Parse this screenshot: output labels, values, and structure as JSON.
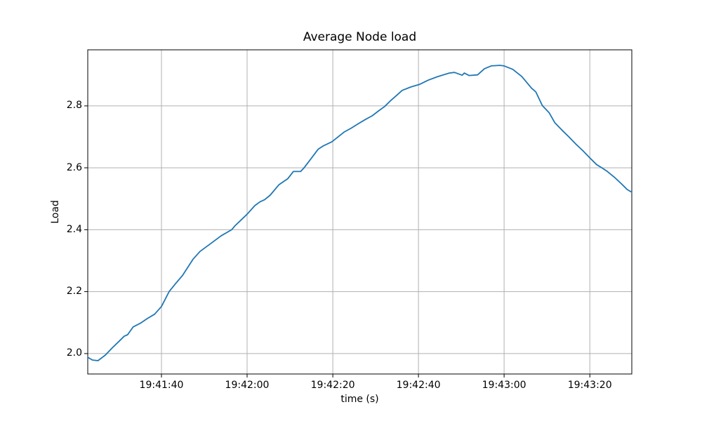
{
  "chart_data": {
    "type": "line",
    "title": "Average Node load",
    "xlabel": "time (s)",
    "ylabel": "Load",
    "grid": true,
    "legend": false,
    "background_color": "#ffffff",
    "grid_color": "#b0b0b0",
    "spine_color": "#000000",
    "x_axis": {
      "unit": "seconds after 19:41:00",
      "xlim_seconds": [
        22.8,
        149.8
      ],
      "ticks": [
        {
          "seconds": 40,
          "label": "19:41:40"
        },
        {
          "seconds": 60,
          "label": "19:42:00"
        },
        {
          "seconds": 80,
          "label": "19:42:20"
        },
        {
          "seconds": 100,
          "label": "19:42:40"
        },
        {
          "seconds": 120,
          "label": "19:43:00"
        },
        {
          "seconds": 140,
          "label": "19:43:20"
        }
      ]
    },
    "y_axis": {
      "ylim": [
        1.934,
        2.981
      ],
      "ticks": [
        {
          "value": 2.0,
          "label": "2.0"
        },
        {
          "value": 2.2,
          "label": "2.2"
        },
        {
          "value": 2.4,
          "label": "2.4"
        },
        {
          "value": 2.6,
          "label": "2.6"
        },
        {
          "value": 2.8,
          "label": "2.8"
        }
      ]
    },
    "series": [
      {
        "name": "average node load",
        "color": "#1f77b4",
        "line_width": 1.8,
        "x_seconds": [
          22.8,
          23.9,
          25.2,
          26.9,
          28.5,
          30.2,
          31.3,
          32.1,
          33.4,
          35.1,
          36.7,
          38.4,
          40.0,
          41.8,
          43.3,
          44.9,
          47.4,
          49.0,
          51.5,
          53.9,
          56.4,
          57.2,
          60.0,
          61.8,
          63.0,
          64.1,
          65.4,
          67.4,
          69.5,
          70.8,
          72.5,
          73.3,
          74.4,
          76.6,
          77.7,
          79.8,
          82.6,
          84.3,
          85.9,
          87.5,
          89.2,
          90.8,
          92.1,
          93.6,
          94.9,
          96.2,
          98.2,
          100.2,
          102.3,
          104.4,
          107.2,
          108.4,
          110.2,
          110.7,
          111.8,
          113.8,
          115.4,
          117.0,
          119.0,
          120.0,
          122.0,
          124.1,
          126.4,
          127.4,
          128.9,
          130.5,
          131.8,
          133.4,
          135.1,
          136.7,
          138.4,
          140.0,
          141.6,
          142.8,
          144.1,
          145.7,
          147.4,
          148.7,
          149.8
        ],
        "y": [
          1.988,
          1.979,
          1.977,
          1.995,
          2.018,
          2.041,
          2.056,
          2.061,
          2.086,
          2.098,
          2.113,
          2.127,
          2.152,
          2.2,
          2.226,
          2.252,
          2.305,
          2.33,
          2.355,
          2.38,
          2.4,
          2.413,
          2.45,
          2.478,
          2.49,
          2.497,
          2.512,
          2.545,
          2.565,
          2.588,
          2.588,
          2.6,
          2.62,
          2.66,
          2.67,
          2.684,
          2.715,
          2.728,
          2.742,
          2.755,
          2.768,
          2.785,
          2.798,
          2.818,
          2.834,
          2.85,
          2.861,
          2.869,
          2.883,
          2.894,
          2.906,
          2.908,
          2.899,
          2.906,
          2.898,
          2.9,
          2.92,
          2.929,
          2.931,
          2.929,
          2.918,
          2.895,
          2.857,
          2.845,
          2.801,
          2.778,
          2.746,
          2.723,
          2.7,
          2.677,
          2.655,
          2.632,
          2.61,
          2.6,
          2.588,
          2.57,
          2.548,
          2.53,
          2.521
        ]
      }
    ]
  }
}
